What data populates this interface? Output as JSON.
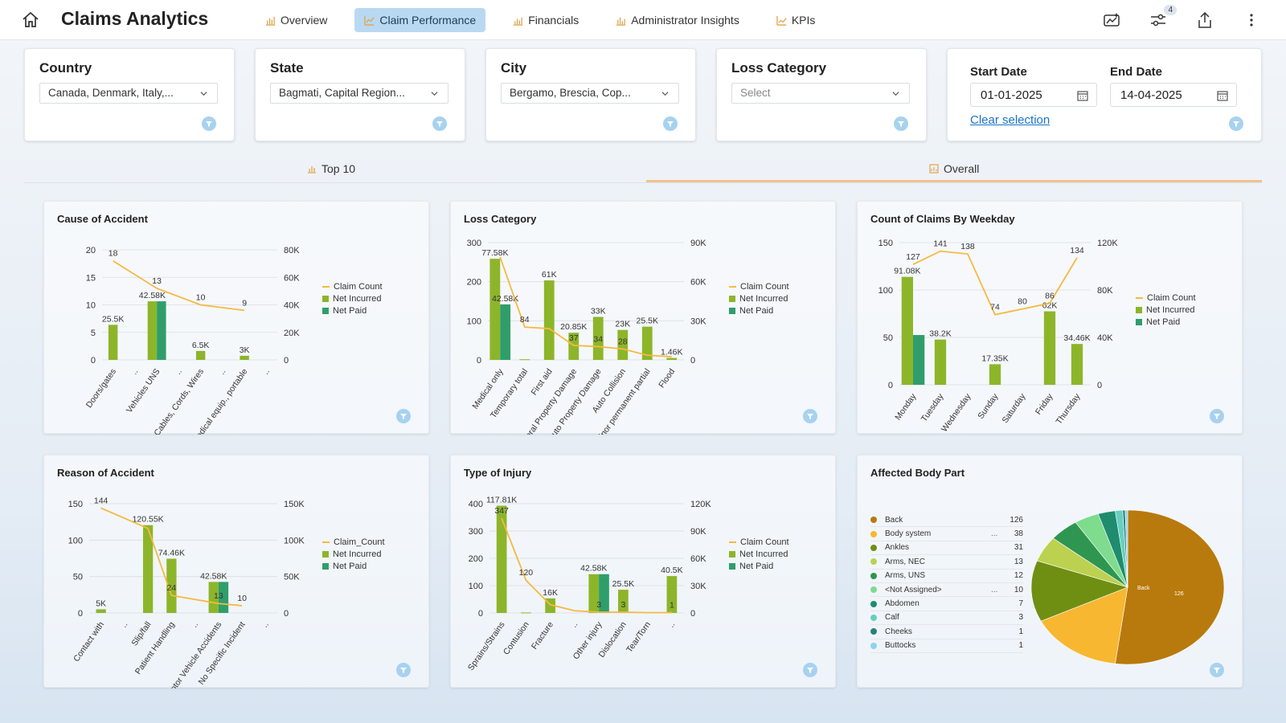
{
  "app": {
    "title": "Claims Analytics"
  },
  "nav": {
    "tabs": [
      {
        "label": "Overview",
        "active": false
      },
      {
        "label": "Claim Performance",
        "active": true
      },
      {
        "label": "Financials",
        "active": false
      },
      {
        "label": "Administrator Insights",
        "active": false
      },
      {
        "label": "KPIs",
        "active": false
      }
    ]
  },
  "toolbar": {
    "filter_count": "4"
  },
  "filters": {
    "country": {
      "label": "Country",
      "value": "Canada, Denmark, Italy,..."
    },
    "state": {
      "label": "State",
      "value": "Bagmati, Capital Region..."
    },
    "city": {
      "label": "City",
      "value": "Bergamo, Brescia, Cop..."
    },
    "loss_category": {
      "label": "Loss Category",
      "placeholder": "Select"
    },
    "dates": {
      "start_label": "Start Date",
      "start_value": "01-01-2025",
      "end_label": "End Date",
      "end_value": "14-04-2025",
      "clear_label": "Clear selection"
    }
  },
  "subtabs": [
    {
      "label": "Top 10",
      "active": false
    },
    {
      "label": "Overall",
      "active": true
    }
  ],
  "colors": {
    "line": "#f5b942",
    "net_incurred": "#8db52a",
    "net_paid": "#2f9e6b",
    "accent_tab": "#b9d9f2"
  },
  "legends": {
    "standard": [
      "Claim Count",
      "Net Incurred",
      "Net Paid"
    ],
    "reason": [
      "Claim_Count",
      "Net Incurred",
      "Net Paid"
    ]
  },
  "chart_data": [
    {
      "id": "cause",
      "type": "bar",
      "title": "Cause of Accident",
      "categories": [
        "Doors/gates",
        "..",
        "Vehicles UNS",
        "..",
        "Cables, Cords, Wires",
        "..",
        "Medical equip., portable",
        ".."
      ],
      "series": [
        {
          "name": "Claim Count",
          "type": "line",
          "axis": "left",
          "values": [
            18,
            null,
            13,
            null,
            10,
            null,
            9,
            null
          ]
        },
        {
          "name": "Net Incurred",
          "axis": "right",
          "values": [
            25.5,
            null,
            42.58,
            null,
            6.5,
            null,
            3,
            null
          ],
          "labels": [
            "25.5K",
            "",
            "42.58K",
            "",
            "6.5K",
            "",
            "3K",
            ""
          ]
        },
        {
          "name": "Net Paid",
          "axis": "right",
          "values": [
            null,
            null,
            42.58,
            null,
            null,
            null,
            null,
            null
          ]
        }
      ],
      "y_left": {
        "min": 0,
        "max": 20,
        "ticks": [
          "0",
          "5",
          "10",
          "15",
          "20"
        ]
      },
      "y_right": {
        "min": 0,
        "max": 80,
        "ticks": [
          "0",
          "20K",
          "40K",
          "60K",
          "80K"
        ]
      },
      "legend": "right"
    },
    {
      "id": "loss",
      "type": "bar",
      "title": "Loss Category",
      "categories": [
        "Medical only",
        "Temporary total",
        "First aid",
        "General Property Damage",
        "Auto Property Damage",
        "Auto Collision",
        "Minor permanent partial",
        "Flood"
      ],
      "series": [
        {
          "name": "Claim Count",
          "type": "line",
          "axis": "left",
          "values": [
            263,
            84,
            80,
            37,
            34,
            28,
            12,
            8
          ]
        },
        {
          "name": "Net Incurred",
          "axis": "right",
          "values": [
            77.58,
            0.5,
            61,
            20.85,
            33,
            23,
            25.5,
            1.46
          ],
          "labels": [
            "77.58K",
            "",
            "61K",
            "20.85K",
            "33K",
            "23K",
            "25.5K",
            "1.46K"
          ]
        },
        {
          "name": "Net Paid",
          "axis": "right",
          "values": [
            42.58,
            null,
            null,
            null,
            null,
            null,
            null,
            null
          ],
          "labels": [
            "42.58K",
            "",
            "",
            "",
            "",
            "",
            "",
            ""
          ]
        }
      ],
      "line_labels": [
        "",
        "84",
        "",
        "37",
        "34",
        "28",
        "",
        ""
      ],
      "y_left": {
        "min": 0,
        "max": 300,
        "ticks": [
          "0",
          "100",
          "200",
          "300"
        ]
      },
      "y_right": {
        "min": 0,
        "max": 90,
        "ticks": [
          "0",
          "30K",
          "60K",
          "90K"
        ]
      },
      "legend": "right"
    },
    {
      "id": "weekday",
      "type": "bar",
      "title": "Count of Claims By Weekday",
      "categories": [
        "Monday",
        "Tuesday",
        "Wednesday",
        "Sunday",
        "Saturday",
        "Friday",
        "Thursday"
      ],
      "series": [
        {
          "name": "Claim Count",
          "type": "line",
          "axis": "left",
          "values": [
            127,
            141,
            138,
            74,
            80,
            86,
            134
          ]
        },
        {
          "name": "Net Incurred",
          "axis": "right",
          "values": [
            91.08,
            38.2,
            null,
            17.35,
            null,
            62,
            34.46
          ],
          "labels": [
            "91.08K",
            "38.2K",
            "",
            "17.35K",
            "",
            "62K",
            "34.46K"
          ]
        },
        {
          "name": "Net Paid",
          "axis": "right",
          "values": [
            42,
            null,
            null,
            null,
            null,
            null,
            null
          ]
        }
      ],
      "y_left": {
        "min": 0,
        "max": 150,
        "ticks": [
          "0",
          "50",
          "100",
          "150"
        ]
      },
      "y_right": {
        "min": 0,
        "max": 120,
        "ticks": [
          "0",
          "40K",
          "80K",
          "120K"
        ]
      },
      "legend": "right"
    },
    {
      "id": "reason",
      "type": "bar",
      "title": "Reason of Accident",
      "categories": [
        "Contact with",
        "..",
        "Slip/fall",
        "Patient Handling",
        "..",
        "Motor Vehicle Accidents",
        "No Specific Incident",
        ".."
      ],
      "series": [
        {
          "name": "Claim_Count",
          "type": "line",
          "axis": "left",
          "values": [
            144,
            null,
            116,
            24,
            null,
            13,
            10,
            null
          ]
        },
        {
          "name": "Net Incurred",
          "axis": "right",
          "values": [
            5,
            null,
            120.55,
            74.46,
            null,
            42.58,
            null,
            null
          ],
          "labels": [
            "5K",
            "",
            "120.55K",
            "74.46K",
            "",
            "42.58K",
            "",
            ""
          ]
        },
        {
          "name": "Net Paid",
          "axis": "right",
          "values": [
            null,
            null,
            null,
            null,
            null,
            42.58,
            null,
            null
          ]
        }
      ],
      "line_labels": [
        "144",
        "",
        "",
        "24",
        "",
        "13",
        "10",
        ""
      ],
      "y_left": {
        "min": 0,
        "max": 150,
        "ticks": [
          "0",
          "50",
          "100",
          "150"
        ]
      },
      "y_right": {
        "min": 0,
        "max": 150,
        "ticks": [
          "0",
          "50K",
          "100K",
          "150K"
        ]
      },
      "legend": "right"
    },
    {
      "id": "injury",
      "type": "bar",
      "title": "Type of Injury",
      "categories": [
        "Sprains/Strains",
        "Contusion",
        "Fracture",
        "..",
        "Other injury",
        "Dislocation",
        "Tear/Torn",
        ".."
      ],
      "series": [
        {
          "name": "Claim Count",
          "type": "line",
          "axis": "left",
          "values": [
            347,
            120,
            30,
            8,
            3,
            3,
            1,
            1
          ]
        },
        {
          "name": "Net Incurred",
          "axis": "right",
          "values": [
            117.81,
            0.5,
            16,
            null,
            42.58,
            25.5,
            null,
            40.5
          ],
          "labels": [
            "117.81K",
            "",
            "16K",
            "",
            "42.58K",
            "25.5K",
            "",
            "40.5K"
          ]
        },
        {
          "name": "Net Paid",
          "axis": "right",
          "values": [
            null,
            null,
            null,
            null,
            42.58,
            null,
            null,
            null
          ]
        }
      ],
      "line_labels": [
        "347",
        "120",
        "",
        "",
        "3",
        "3",
        "",
        "1"
      ],
      "y_left": {
        "min": 0,
        "max": 400,
        "ticks": [
          "0",
          "100",
          "200",
          "300",
          "400"
        ]
      },
      "y_right": {
        "min": 0,
        "max": 120,
        "ticks": [
          "0",
          "30K",
          "60K",
          "90K",
          "120K"
        ]
      },
      "legend": "right"
    },
    {
      "id": "body",
      "type": "pie",
      "title": "Affected Body Part",
      "slices": [
        {
          "name": "Back",
          "value": 126,
          "value_label": "126",
          "color": "#b87a0c",
          "truncated": false
        },
        {
          "name": "Body system",
          "value": 38,
          "value_label": "38",
          "color": "#f7b731",
          "truncated": true
        },
        {
          "name": "Ankles",
          "value": 31,
          "value_label": "31",
          "color": "#6f8f12",
          "truncated": false
        },
        {
          "name": "Arms, NEC",
          "value": 13,
          "value_label": "13",
          "color": "#bcd150",
          "truncated": false
        },
        {
          "name": "Arms, UNS",
          "value": 12,
          "value_label": "12",
          "color": "#2e9650",
          "truncated": false
        },
        {
          "name": "<Not Assigned>",
          "value": 10,
          "value_label": "10",
          "color": "#7fdb8d",
          "truncated": true
        },
        {
          "name": "Abdomen",
          "value": 7,
          "value_label": "7",
          "color": "#1f8c6e",
          "truncated": false
        },
        {
          "name": "Calf",
          "value": 3,
          "value_label": "3",
          "color": "#67cfc1",
          "truncated": false
        },
        {
          "name": "Cheeks",
          "value": 1,
          "value_label": "1",
          "color": "#2a7f7a",
          "truncated": false
        },
        {
          "name": "Buttocks",
          "value": 1,
          "value_label": "1",
          "color": "#8fd2f0",
          "truncated": false
        }
      ],
      "slice_label": "Back",
      "slice_value_label": "126",
      "legend": "left"
    }
  ]
}
